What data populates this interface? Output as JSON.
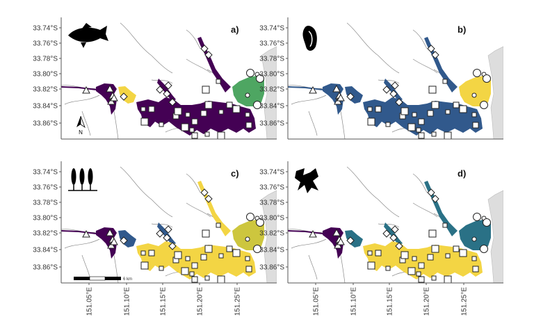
{
  "colors": {
    "purple": "#440154",
    "blue": "#31598c",
    "teal": "#2a7186",
    "yellow": "#f3d544",
    "green": "#4ea662",
    "olive": "#cdc63e",
    "land": "#dddddd",
    "river": "#8a8a8a"
  },
  "y_ticks": [
    "33.74°S",
    "33.76°S",
    "33.78°S",
    "33.80°S",
    "33.82°S",
    "33.84°S",
    "33.86°S"
  ],
  "x_ticks": [
    "151.05°E",
    "151.10°E",
    "151.15°E",
    "151.20°E",
    "151.25°E"
  ],
  "panels": [
    {
      "label": "a)",
      "icon": "fish-icon"
    },
    {
      "label": "b)",
      "icon": "shell-icon"
    },
    {
      "label": "c)",
      "icon": "seagrass-icon"
    },
    {
      "label": "d)",
      "icon": "algae-icon"
    }
  ],
  "north_arrow": "N",
  "scale_bar": "6 km"
}
